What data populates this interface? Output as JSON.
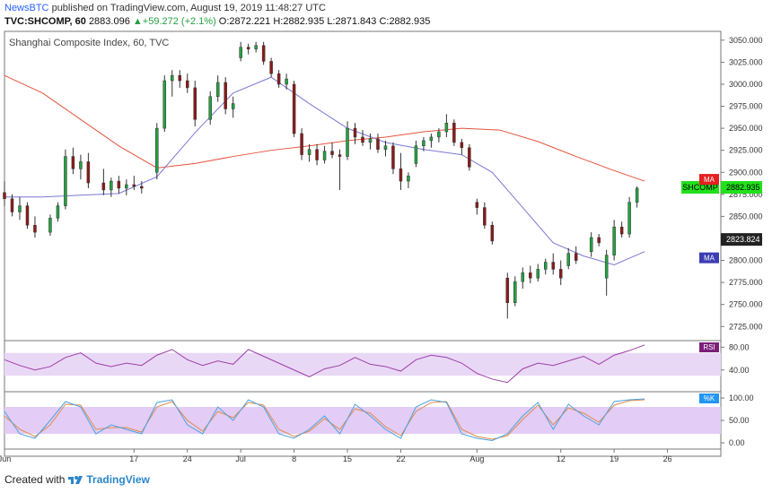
{
  "header": {
    "author": "NewsBTC",
    "published_text": " published on TradingView.com, August 19, 2019 11:48:27 UTC",
    "ticker": "TVC:SHCOMP, 60",
    "last": "2883.096",
    "change": "+59.272 (+2.1%)",
    "open": "O:2872.221",
    "high": "H:2882.935",
    "low": "L:2871.843",
    "close": "C:2882.935"
  },
  "footer": {
    "prefix": "Created with",
    "brand": "TradingView"
  },
  "colors": {
    "up": "#26a042",
    "down": "#8b1a1a",
    "wick": "#333333",
    "ma_slow": "#e5533d",
    "ma_fast": "#7b78d4",
    "rsi_line": "#9b3fa8",
    "rsi_band": "#e9d8f5",
    "stoch_k": "#4aa3e0",
    "stoch_d": "#e08a4a",
    "stoch_band": "#e3ccf5",
    "last_tag": "#22e01a",
    "ma_tag_red": "#e52020",
    "ma_tag_blue": "#3c3cb4",
    "osc_tag": "#2196f3",
    "rsi_tag": "#7b1f7b"
  },
  "chart_data": {
    "title": "Shanghai Composite Index, 60, TVC",
    "type": "candlestick",
    "x_tick_labels": [
      "Jun",
      "17",
      "24",
      "Jul",
      "8",
      "15",
      "22",
      "Aug",
      "12",
      "19",
      "26"
    ],
    "x_tick_days": [
      0,
      17,
      24,
      31,
      38,
      45,
      52,
      62,
      73,
      80,
      87
    ],
    "x_range_days": [
      0,
      94
    ],
    "price_axis": {
      "ticks": [
        3050,
        3025,
        3000,
        2975,
        2950,
        2925,
        2900,
        2875,
        2850,
        2825,
        2800,
        2775,
        2750,
        2725
      ],
      "ylim": [
        2710,
        3060
      ]
    },
    "tags": {
      "last": {
        "label": "SHCOMP",
        "value": "2882.935"
      },
      "level": {
        "value": "2823.824"
      },
      "ma_slow": {
        "label": "MA",
        "value": 2890
      },
      "ma_fast": {
        "label": "MA",
        "value": 2805
      }
    },
    "candles_hint": "Daily OHLC approximations for the Shanghai Composite, x in calendar days from the first date shown",
    "candles": [
      {
        "x": 0,
        "o": 2877,
        "h": 2890,
        "l": 2862,
        "c": 2870
      },
      {
        "x": 1,
        "o": 2870,
        "h": 2875,
        "l": 2850,
        "c": 2855
      },
      {
        "x": 2,
        "o": 2855,
        "h": 2872,
        "l": 2846,
        "c": 2862
      },
      {
        "x": 3,
        "o": 2862,
        "h": 2866,
        "l": 2836,
        "c": 2840
      },
      {
        "x": 4,
        "o": 2840,
        "h": 2850,
        "l": 2826,
        "c": 2832
      },
      {
        "x": 6,
        "o": 2832,
        "h": 2852,
        "l": 2828,
        "c": 2848
      },
      {
        "x": 7,
        "o": 2848,
        "h": 2866,
        "l": 2844,
        "c": 2862
      },
      {
        "x": 8,
        "o": 2862,
        "h": 2926,
        "l": 2858,
        "c": 2918
      },
      {
        "x": 9,
        "o": 2918,
        "h": 2928,
        "l": 2898,
        "c": 2904
      },
      {
        "x": 10,
        "o": 2904,
        "h": 2920,
        "l": 2892,
        "c": 2912
      },
      {
        "x": 11,
        "o": 2912,
        "h": 2922,
        "l": 2882,
        "c": 2888
      },
      {
        "x": 13,
        "o": 2888,
        "h": 2904,
        "l": 2874,
        "c": 2880
      },
      {
        "x": 14,
        "o": 2880,
        "h": 2894,
        "l": 2872,
        "c": 2890
      },
      {
        "x": 15,
        "o": 2890,
        "h": 2896,
        "l": 2876,
        "c": 2882
      },
      {
        "x": 16,
        "o": 2882,
        "h": 2892,
        "l": 2874,
        "c": 2886
      },
      {
        "x": 17,
        "o": 2886,
        "h": 2896,
        "l": 2880,
        "c": 2884
      },
      {
        "x": 18,
        "o": 2884,
        "h": 2890,
        "l": 2876,
        "c": 2882
      },
      {
        "x": 20,
        "o": 2900,
        "h": 2956,
        "l": 2892,
        "c": 2950
      },
      {
        "x": 21,
        "o": 2950,
        "h": 3010,
        "l": 2946,
        "c": 3004
      },
      {
        "x": 22,
        "o": 3004,
        "h": 3016,
        "l": 2986,
        "c": 3010
      },
      {
        "x": 23,
        "o": 3010,
        "h": 3016,
        "l": 2996,
        "c": 3004
      },
      {
        "x": 24,
        "o": 3004,
        "h": 3012,
        "l": 2990,
        "c": 2996
      },
      {
        "x": 25,
        "o": 2996,
        "h": 3004,
        "l": 2952,
        "c": 2960
      },
      {
        "x": 27,
        "o": 2960,
        "h": 2992,
        "l": 2954,
        "c": 2986
      },
      {
        "x": 28,
        "o": 2986,
        "h": 3010,
        "l": 2980,
        "c": 3002
      },
      {
        "x": 29,
        "o": 3002,
        "h": 3008,
        "l": 2966,
        "c": 2972
      },
      {
        "x": 30,
        "o": 2972,
        "h": 2986,
        "l": 2962,
        "c": 2978
      },
      {
        "x": 31,
        "o": 3030,
        "h": 3048,
        "l": 3026,
        "c": 3042
      },
      {
        "x": 32,
        "o": 3042,
        "h": 3046,
        "l": 3034,
        "c": 3040
      },
      {
        "x": 33,
        "o": 3040,
        "h": 3048,
        "l": 3036,
        "c": 3044
      },
      {
        "x": 34,
        "o": 3044,
        "h": 3048,
        "l": 3022,
        "c": 3026
      },
      {
        "x": 35,
        "o": 3026,
        "h": 3030,
        "l": 3008,
        "c": 3012
      },
      {
        "x": 36,
        "o": 3012,
        "h": 3016,
        "l": 2996,
        "c": 3000
      },
      {
        "x": 37,
        "o": 3000,
        "h": 3012,
        "l": 2994,
        "c": 3006
      },
      {
        "x": 38,
        "o": 3000,
        "h": 3004,
        "l": 2940,
        "c": 2944
      },
      {
        "x": 39,
        "o": 2944,
        "h": 2950,
        "l": 2914,
        "c": 2920
      },
      {
        "x": 40,
        "o": 2920,
        "h": 2932,
        "l": 2912,
        "c": 2926
      },
      {
        "x": 41,
        "o": 2926,
        "h": 2932,
        "l": 2908,
        "c": 2914
      },
      {
        "x": 42,
        "o": 2914,
        "h": 2930,
        "l": 2910,
        "c": 2924
      },
      {
        "x": 43,
        "o": 2924,
        "h": 2934,
        "l": 2916,
        "c": 2920
      },
      {
        "x": 44,
        "o": 2920,
        "h": 2926,
        "l": 2880,
        "c": 2918
      },
      {
        "x": 45,
        "o": 2918,
        "h": 2958,
        "l": 2914,
        "c": 2950
      },
      {
        "x": 46,
        "o": 2950,
        "h": 2956,
        "l": 2932,
        "c": 2940
      },
      {
        "x": 47,
        "o": 2940,
        "h": 2948,
        "l": 2930,
        "c": 2934
      },
      {
        "x": 48,
        "o": 2934,
        "h": 2944,
        "l": 2926,
        "c": 2938
      },
      {
        "x": 49,
        "o": 2938,
        "h": 2944,
        "l": 2922,
        "c": 2926
      },
      {
        "x": 50,
        "o": 2926,
        "h": 2936,
        "l": 2918,
        "c": 2930
      },
      {
        "x": 51,
        "o": 2930,
        "h": 2934,
        "l": 2898,
        "c": 2904
      },
      {
        "x": 52,
        "o": 2904,
        "h": 2922,
        "l": 2880,
        "c": 2890
      },
      {
        "x": 53,
        "o": 2890,
        "h": 2900,
        "l": 2882,
        "c": 2896
      },
      {
        "x": 54,
        "o": 2910,
        "h": 2936,
        "l": 2906,
        "c": 2930
      },
      {
        "x": 55,
        "o": 2930,
        "h": 2940,
        "l": 2924,
        "c": 2936
      },
      {
        "x": 56,
        "o": 2936,
        "h": 2944,
        "l": 2928,
        "c": 2940
      },
      {
        "x": 57,
        "o": 2940,
        "h": 2950,
        "l": 2934,
        "c": 2946
      },
      {
        "x": 58,
        "o": 2946,
        "h": 2966,
        "l": 2940,
        "c": 2956
      },
      {
        "x": 59,
        "o": 2956,
        "h": 2960,
        "l": 2930,
        "c": 2934
      },
      {
        "x": 60,
        "o": 2934,
        "h": 2938,
        "l": 2920,
        "c": 2928
      },
      {
        "x": 61,
        "o": 2928,
        "h": 2932,
        "l": 2902,
        "c": 2906
      },
      {
        "x": 62,
        "o": 2866,
        "h": 2870,
        "l": 2852,
        "c": 2860
      },
      {
        "x": 63,
        "o": 2860,
        "h": 2866,
        "l": 2836,
        "c": 2840
      },
      {
        "x": 64,
        "o": 2840,
        "h": 2844,
        "l": 2818,
        "c": 2822
      },
      {
        "x": 66,
        "o": 2780,
        "h": 2786,
        "l": 2734,
        "c": 2752
      },
      {
        "x": 67,
        "o": 2752,
        "h": 2782,
        "l": 2748,
        "c": 2776
      },
      {
        "x": 68,
        "o": 2776,
        "h": 2792,
        "l": 2768,
        "c": 2786
      },
      {
        "x": 69,
        "o": 2786,
        "h": 2794,
        "l": 2774,
        "c": 2780
      },
      {
        "x": 70,
        "o": 2780,
        "h": 2796,
        "l": 2776,
        "c": 2790
      },
      {
        "x": 71,
        "o": 2790,
        "h": 2802,
        "l": 2784,
        "c": 2798
      },
      {
        "x": 72,
        "o": 2798,
        "h": 2808,
        "l": 2784,
        "c": 2790
      },
      {
        "x": 73,
        "o": 2790,
        "h": 2800,
        "l": 2772,
        "c": 2780
      },
      {
        "x": 74,
        "o": 2794,
        "h": 2814,
        "l": 2790,
        "c": 2808
      },
      {
        "x": 75,
        "o": 2808,
        "h": 2816,
        "l": 2796,
        "c": 2800
      },
      {
        "x": 77,
        "o": 2810,
        "h": 2832,
        "l": 2804,
        "c": 2826
      },
      {
        "x": 78,
        "o": 2826,
        "h": 2830,
        "l": 2816,
        "c": 2820
      },
      {
        "x": 79,
        "o": 2780,
        "h": 2812,
        "l": 2760,
        "c": 2806
      },
      {
        "x": 80,
        "o": 2806,
        "h": 2846,
        "l": 2800,
        "c": 2838
      },
      {
        "x": 81,
        "o": 2838,
        "h": 2844,
        "l": 2826,
        "c": 2830
      },
      {
        "x": 82,
        "o": 2830,
        "h": 2872,
        "l": 2826,
        "c": 2866
      },
      {
        "x": 83,
        "o": 2866,
        "h": 2884,
        "l": 2860,
        "c": 2882
      }
    ],
    "ma_fast": {
      "x": [
        0,
        5,
        10,
        15,
        20,
        25,
        30,
        35,
        40,
        45,
        50,
        55,
        60,
        64,
        68,
        72,
        76,
        80,
        84
      ],
      "y": [
        2872,
        2872,
        2874,
        2876,
        2895,
        2945,
        2990,
        3008,
        2978,
        2950,
        2934,
        2926,
        2920,
        2900,
        2860,
        2820,
        2805,
        2795,
        2810
      ]
    },
    "ma_slow": {
      "x": [
        0,
        5,
        10,
        15,
        20,
        25,
        30,
        35,
        40,
        45,
        50,
        55,
        60,
        65,
        70,
        75,
        80,
        84
      ],
      "y": [
        3010,
        2990,
        2960,
        2930,
        2905,
        2910,
        2918,
        2925,
        2930,
        2936,
        2940,
        2946,
        2950,
        2948,
        2935,
        2918,
        2902,
        2890
      ]
    },
    "rsi": {
      "label": "RSI",
      "ticks": [
        80,
        40
      ],
      "ylim": [
        5,
        90
      ],
      "band": [
        30,
        70
      ],
      "x": [
        0,
        2,
        4,
        6,
        8,
        10,
        12,
        14,
        16,
        18,
        20,
        22,
        24,
        26,
        28,
        30,
        32,
        34,
        36,
        38,
        40,
        42,
        44,
        46,
        48,
        50,
        52,
        54,
        56,
        58,
        60,
        62,
        64,
        66,
        68,
        70,
        72,
        74,
        76,
        78,
        80,
        82,
        84
      ],
      "y": [
        58,
        48,
        40,
        46,
        62,
        70,
        52,
        46,
        52,
        48,
        66,
        76,
        58,
        48,
        56,
        50,
        76,
        64,
        52,
        40,
        28,
        42,
        48,
        62,
        50,
        46,
        38,
        58,
        66,
        62,
        52,
        34,
        24,
        18,
        42,
        52,
        48,
        56,
        64,
        50,
        66,
        74,
        84
      ]
    },
    "stoch": {
      "label": "%K",
      "ticks": [
        "100.00",
        "50.00",
        "0.00"
      ],
      "ylim": [
        -10,
        110
      ],
      "band": [
        20,
        80
      ],
      "x": [
        0,
        2,
        4,
        6,
        8,
        10,
        12,
        14,
        16,
        18,
        20,
        22,
        24,
        26,
        28,
        30,
        32,
        34,
        36,
        38,
        40,
        42,
        44,
        46,
        48,
        50,
        52,
        54,
        56,
        58,
        60,
        62,
        64,
        66,
        68,
        70,
        72,
        74,
        76,
        78,
        80,
        82,
        84
      ],
      "k": [
        70,
        20,
        10,
        50,
        92,
        80,
        20,
        40,
        30,
        20,
        90,
        96,
        40,
        20,
        80,
        50,
        96,
        80,
        20,
        10,
        30,
        60,
        20,
        86,
        60,
        30,
        10,
        80,
        96,
        90,
        20,
        10,
        5,
        20,
        60,
        90,
        30,
        86,
        60,
        40,
        92,
        96,
        98
      ],
      "d": [
        60,
        30,
        14,
        40,
        86,
        84,
        30,
        34,
        34,
        24,
        80,
        92,
        50,
        26,
        70,
        56,
        90,
        84,
        30,
        14,
        26,
        54,
        30,
        76,
        66,
        36,
        16,
        70,
        90,
        92,
        30,
        14,
        8,
        16,
        52,
        84,
        40,
        78,
        66,
        46,
        84,
        94,
        96
      ]
    }
  }
}
